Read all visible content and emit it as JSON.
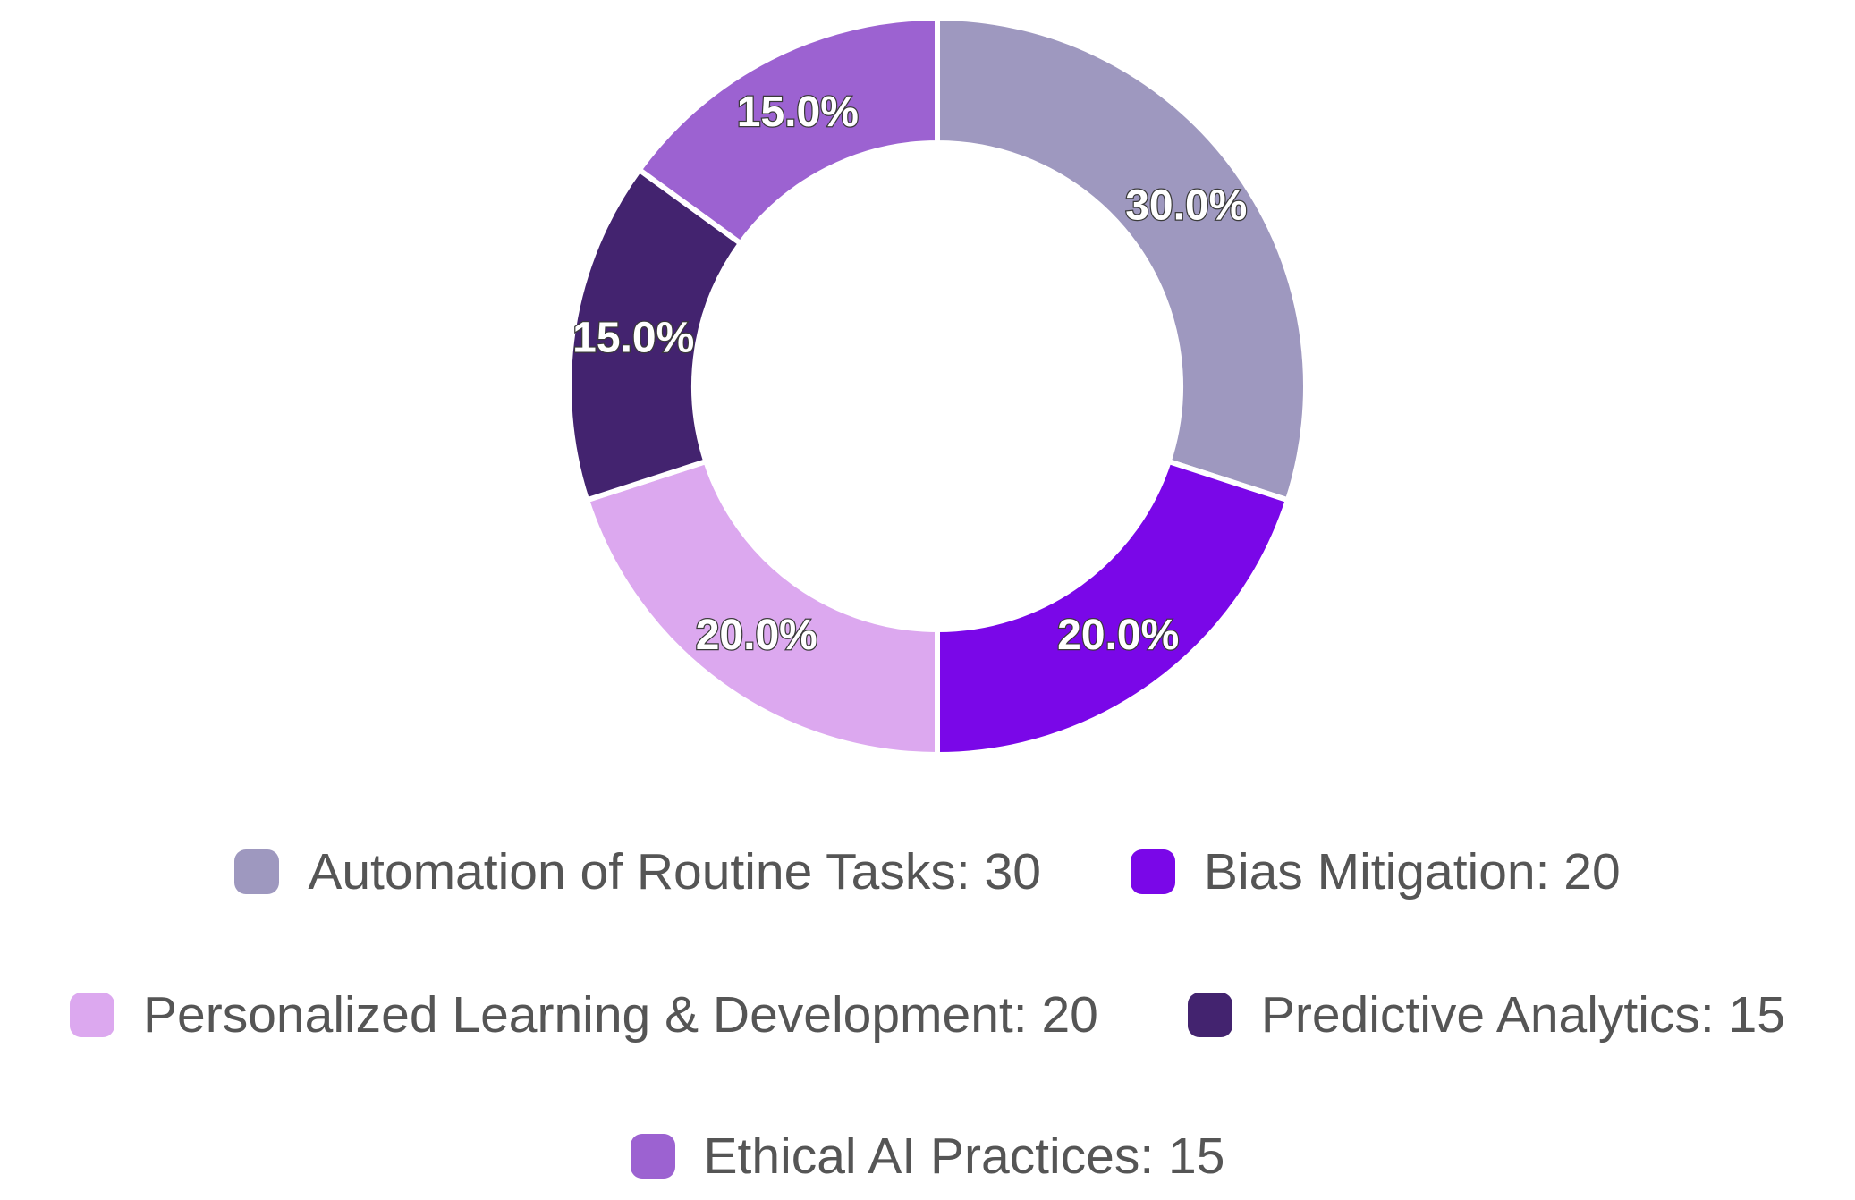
{
  "chart_data": {
    "type": "pie",
    "donut": true,
    "title": "",
    "categories": [
      "Automation of Routine Tasks",
      "Bias Mitigation",
      "Personalized Learning & Development",
      "Predictive Analytics",
      "Ethical AI Practices"
    ],
    "values": [
      30,
      20,
      20,
      15,
      15
    ],
    "percent_labels": [
      "30.0%",
      "20.0%",
      "20.0%",
      "15.0%",
      "15.0%"
    ],
    "colors": [
      "#9e98bf",
      "#7a07e8",
      "#dca8ef",
      "#43236f",
      "#9c62d1"
    ],
    "legend_placement": "bottom",
    "legend_labels": [
      "Automation of Routine Tasks: 30",
      "Bias Mitigation: 20",
      "Personalized Learning & Development: 20",
      "Predictive Analytics: 15",
      "Ethical AI Practices: 15"
    ]
  }
}
